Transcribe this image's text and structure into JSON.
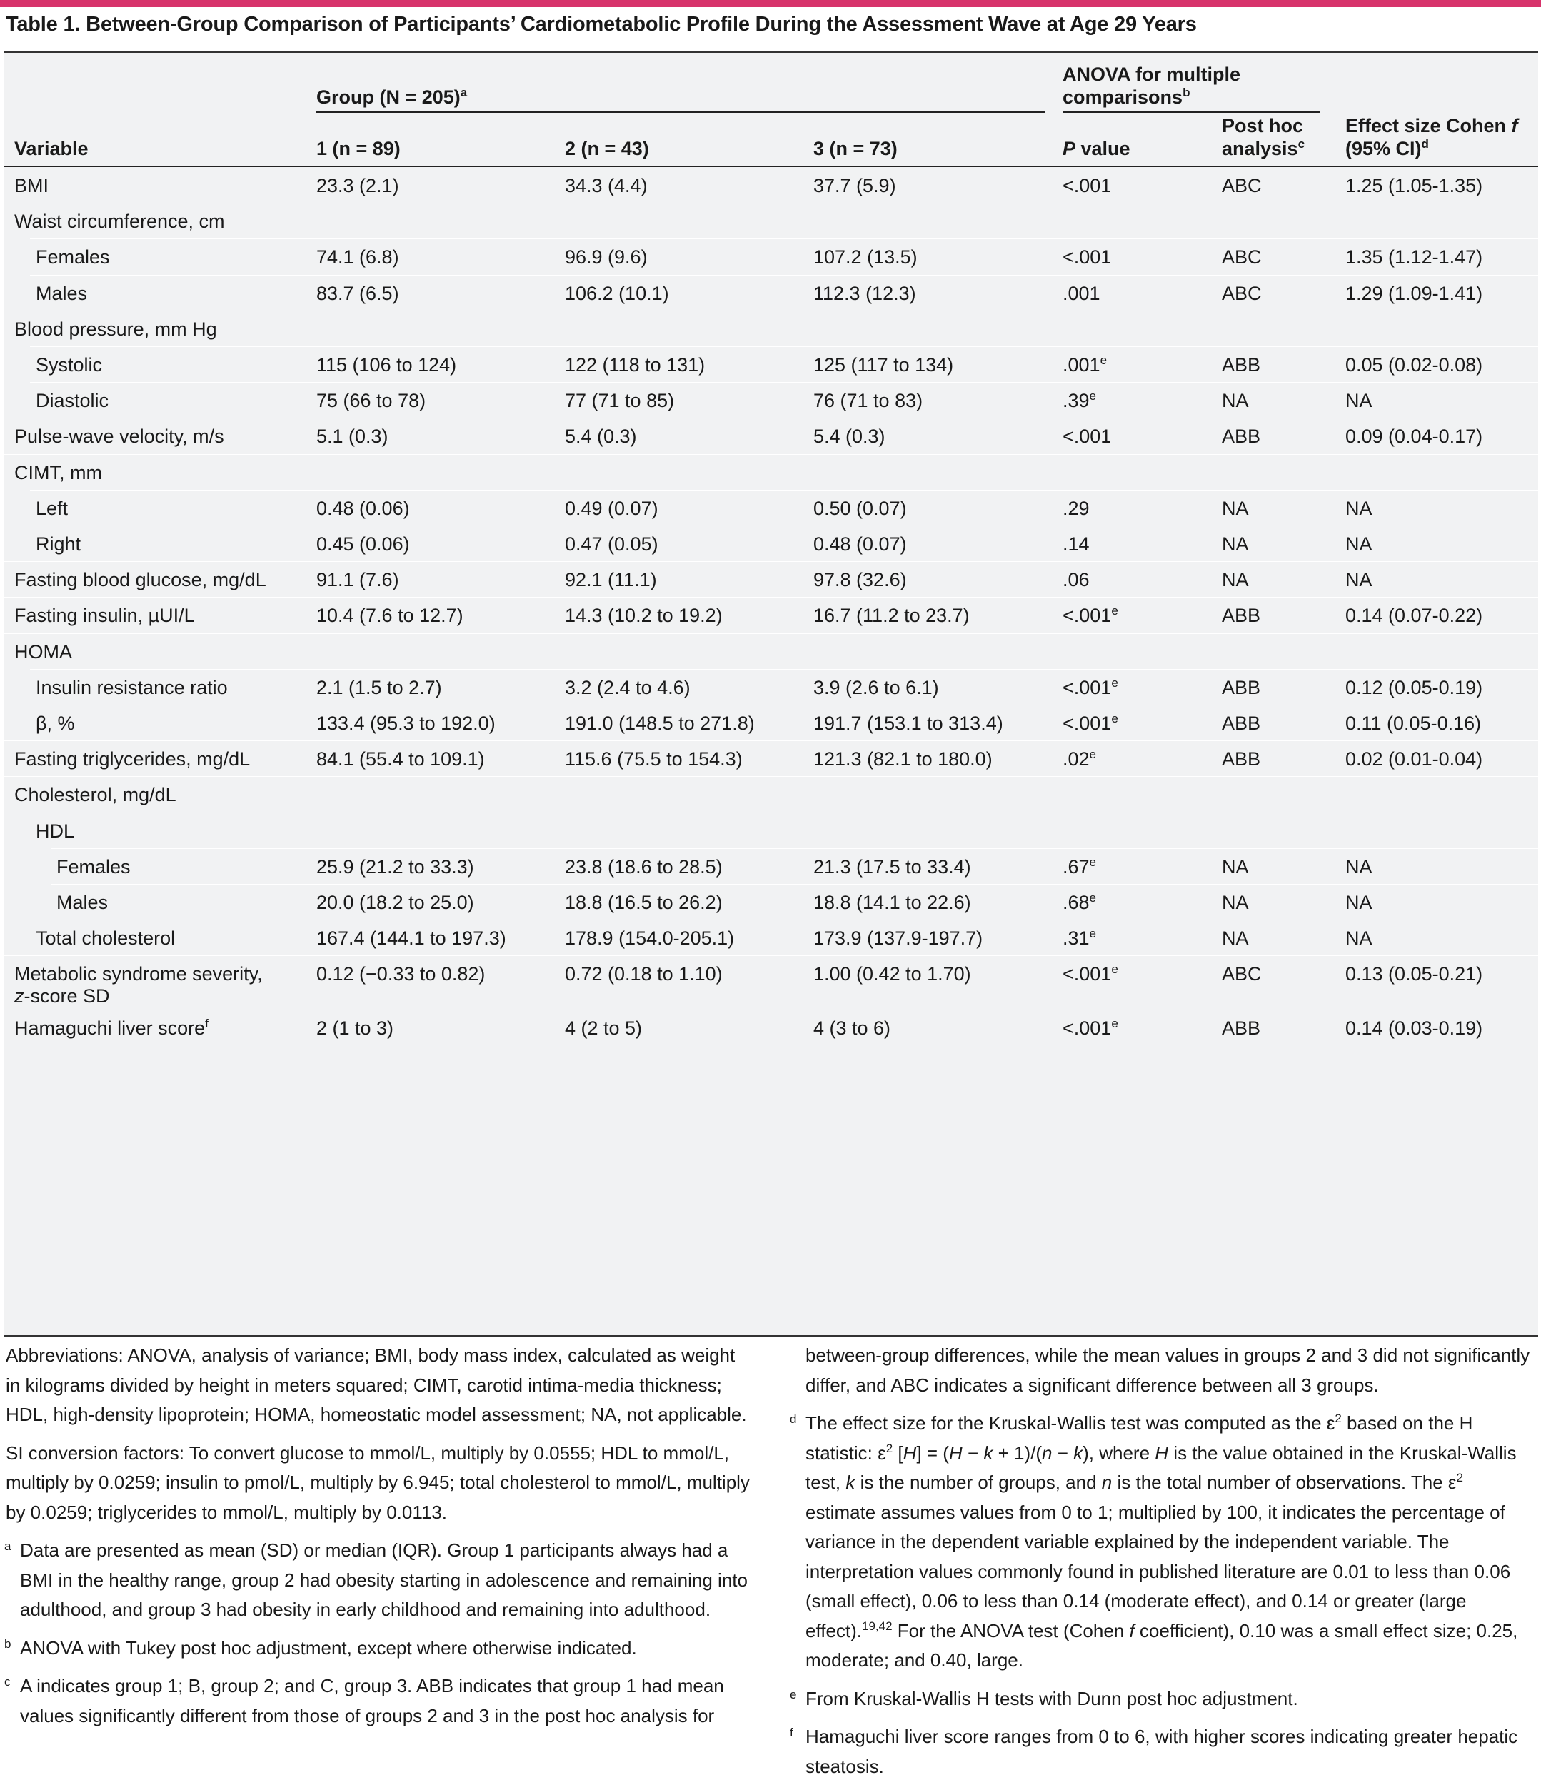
{
  "title": "Table 1. Between-Group Comparison of Participants’ Cardiometabolic Profile During the Assessment Wave at Age 29 Years",
  "header": {
    "group_span": "Group (N = 205)",
    "group_span_sup": "a",
    "anova_span_line1": "ANOVA for multiple",
    "anova_span_line2": "comparisons",
    "anova_span_sup": "b",
    "variable": "Variable",
    "g1": "1 (n = 89)",
    "g2": "2 (n = 43)",
    "g3": "3 (n = 73)",
    "p_italic": "P",
    "p_rest": " value",
    "posthoc_line1": "Post hoc",
    "posthoc_line2": "analysis",
    "posthoc_sup": "c",
    "effect_line1": "Effect size Cohen ",
    "effect_italic": "f",
    "effect_line2": "(95% CI)",
    "effect_sup": "d"
  },
  "rows": [
    {
      "label": "BMI",
      "indent": 0,
      "g1": "23.3 (2.1)",
      "g2": "34.3 (4.4)",
      "g3": "37.7 (5.9)",
      "p": "<.001",
      "p_sup": "",
      "posthoc": "ABC",
      "effect": "1.25 (1.05-1.35)"
    },
    {
      "label": "Waist circumference, cm",
      "indent": 0,
      "g1": "",
      "g2": "",
      "g3": "",
      "p": "",
      "p_sup": "",
      "posthoc": "",
      "effect": ""
    },
    {
      "label": "Females",
      "indent": 1,
      "g1": "74.1 (6.8)",
      "g2": "96.9 (9.6)",
      "g3": "107.2 (13.5)",
      "p": "<.001",
      "p_sup": "",
      "posthoc": "ABC",
      "effect": "1.35 (1.12-1.47)"
    },
    {
      "label": "Males",
      "indent": 1,
      "g1": "83.7 (6.5)",
      "g2": "106.2 (10.1)",
      "g3": "112.3 (12.3)",
      "p": ".001",
      "p_sup": "",
      "posthoc": "ABC",
      "effect": "1.29 (1.09-1.41)"
    },
    {
      "label": "Blood pressure, mm Hg",
      "indent": 0,
      "g1": "",
      "g2": "",
      "g3": "",
      "p": "",
      "p_sup": "",
      "posthoc": "",
      "effect": ""
    },
    {
      "label": "Systolic",
      "indent": 1,
      "g1": "115 (106 to 124)",
      "g2": "122 (118 to 131)",
      "g3": "125 (117 to 134)",
      "p": ".001",
      "p_sup": "e",
      "posthoc": "ABB",
      "effect": "0.05 (0.02-0.08)"
    },
    {
      "label": "Diastolic",
      "indent": 1,
      "g1": "75 (66 to 78)",
      "g2": "77 (71 to 85)",
      "g3": "76 (71 to 83)",
      "p": ".39",
      "p_sup": "e",
      "posthoc": "NA",
      "effect": "NA"
    },
    {
      "label": "Pulse-wave velocity, m/s",
      "indent": 0,
      "g1": "5.1 (0.3)",
      "g2": "5.4 (0.3)",
      "g3": "5.4 (0.3)",
      "p": "<.001",
      "p_sup": "",
      "posthoc": "ABB",
      "effect": "0.09 (0.04-0.17)"
    },
    {
      "label": "CIMT, mm",
      "indent": 0,
      "g1": "",
      "g2": "",
      "g3": "",
      "p": "",
      "p_sup": "",
      "posthoc": "",
      "effect": ""
    },
    {
      "label": "Left",
      "indent": 1,
      "g1": "0.48 (0.06)",
      "g2": "0.49 (0.07)",
      "g3": "0.50 (0.07)",
      "p": ".29",
      "p_sup": "",
      "posthoc": "NA",
      "effect": "NA"
    },
    {
      "label": "Right",
      "indent": 1,
      "g1": "0.45 (0.06)",
      "g2": "0.47 (0.05)",
      "g3": "0.48 (0.07)",
      "p": ".14",
      "p_sup": "",
      "posthoc": "NA",
      "effect": "NA"
    },
    {
      "label": "Fasting blood glucose, mg/dL",
      "indent": 0,
      "g1": "91.1 (7.6)",
      "g2": "92.1 (11.1)",
      "g3": "97.8 (32.6)",
      "p": ".06",
      "p_sup": "",
      "posthoc": "NA",
      "effect": "NA"
    },
    {
      "label": "Fasting insulin, µUI/L",
      "indent": 0,
      "g1": "10.4 (7.6 to 12.7)",
      "g2": "14.3 (10.2 to 19.2)",
      "g3": "16.7 (11.2 to 23.7)",
      "p": "<.001",
      "p_sup": "e",
      "posthoc": "ABB",
      "effect": "0.14 (0.07-0.22)"
    },
    {
      "label": "HOMA",
      "indent": 0,
      "g1": "",
      "g2": "",
      "g3": "",
      "p": "",
      "p_sup": "",
      "posthoc": "",
      "effect": ""
    },
    {
      "label": "Insulin resistance ratio",
      "indent": 1,
      "g1": "2.1 (1.5 to 2.7)",
      "g2": "3.2 (2.4 to 4.6)",
      "g3": "3.9 (2.6 to 6.1)",
      "p": "<.001",
      "p_sup": "e",
      "posthoc": "ABB",
      "effect": "0.12 (0.05-0.19)"
    },
    {
      "label": "β, %",
      "indent": 1,
      "g1": "133.4 (95.3 to 192.0)",
      "g2": "191.0 (148.5 to 271.8)",
      "g3": "191.7 (153.1 to 313.4)",
      "p": "<.001",
      "p_sup": "e",
      "posthoc": "ABB",
      "effect": "0.11 (0.05-0.16)"
    },
    {
      "label": "Fasting triglycerides, mg/dL",
      "indent": 0,
      "g1": "84.1 (55.4 to 109.1)",
      "g2": "115.6 (75.5 to 154.3)",
      "g3": "121.3 (82.1 to 180.0)",
      "p": ".02",
      "p_sup": "e",
      "posthoc": "ABB",
      "effect": "0.02 (0.01-0.04)"
    },
    {
      "label": "Cholesterol, mg/dL",
      "indent": 0,
      "g1": "",
      "g2": "",
      "g3": "",
      "p": "",
      "p_sup": "",
      "posthoc": "",
      "effect": ""
    },
    {
      "label": "HDL",
      "indent": 1,
      "g1": "",
      "g2": "",
      "g3": "",
      "p": "",
      "p_sup": "",
      "posthoc": "",
      "effect": ""
    },
    {
      "label": "Females",
      "indent": 2,
      "g1": "25.9 (21.2 to 33.3)",
      "g2": "23.8 (18.6 to 28.5)",
      "g3": "21.3 (17.5 to 33.4)",
      "p": ".67",
      "p_sup": "e",
      "posthoc": "NA",
      "effect": "NA"
    },
    {
      "label": "Males",
      "indent": 2,
      "g1": "20.0 (18.2 to 25.0)",
      "g2": "18.8 (16.5 to 26.2)",
      "g3": "18.8 (14.1 to 22.6)",
      "p": ".68",
      "p_sup": "e",
      "posthoc": "NA",
      "effect": "NA"
    },
    {
      "label": "Total cholesterol",
      "indent": 1,
      "g1": "167.4 (144.1 to 197.3)",
      "g2": "178.9 (154.0-205.1)",
      "g3": "173.9 (137.9-197.7)",
      "p": ".31",
      "p_sup": "e",
      "posthoc": "NA",
      "effect": "NA"
    },
    {
      "label": "Metabolic syndrome severity,",
      "label2_italic": "z",
      "label2_rest": "-score SD",
      "indent": 0,
      "g1": "0.12 (−0.33 to 0.82)",
      "g2": "0.72 (0.18 to 1.10)",
      "g3": "1.00 (0.42 to 1.70)",
      "p": "<.001",
      "p_sup": "e",
      "posthoc": "ABC",
      "effect": "0.13 (0.05-0.21)"
    },
    {
      "label": "Hamaguchi liver score",
      "label_sup": "f",
      "indent": 0,
      "g1": "2 (1 to 3)",
      "g2": "4 (2 to 5)",
      "g3": "4 (3 to 6)",
      "p": "<.001",
      "p_sup": "e",
      "posthoc": "ABB",
      "effect": "0.14 (0.03-0.19)"
    }
  ],
  "notes": {
    "abbreviations": "Abbreviations: ANOVA, analysis of variance; BMI, body mass index, calculated as weight in kilograms divided by height in meters squared; CIMT, carotid intima-media thickness; HDL, high-density lipoprotein; HOMA, homeostatic model assessment; NA, not applicable.",
    "si": "SI conversion factors: To convert glucose to mmol/L, multiply by 0.0555; HDL to mmol/L, multiply by 0.0259; insulin to pmol/L, multiply by 6.945; total cholesterol to mmol/L, multiply by 0.0259; triglycerides to mmol/L, multiply by 0.0113.",
    "a_mark": "a",
    "a": "Data are presented as mean (SD) or median (IQR). Group 1 participants always had a BMI in the healthy range, group 2 had obesity starting in adolescence and remaining into adulthood, and group 3 had obesity in early childhood and remaining into adulthood.",
    "b_mark": "b",
    "b": "ANOVA with Tukey post hoc adjustment, except where otherwise indicated.",
    "c_mark": "c",
    "c_left": "A indicates group 1; B, group 2; and C, group 3. ABB indicates that group 1 had mean values significantly different from those of groups 2 and 3 in the post hoc analysis for",
    "c_right": "between-group differences, while the mean values in groups 2 and 3 did not significantly differ, and ABC indicates a significant difference between all 3 groups.",
    "d_mark": "d",
    "d_1": "The effect size for the Kruskal-Wallis test was computed as the ε",
    "d_2": "2",
    "d_3": " based on the H statistic: ε",
    "d_4": "2",
    "d_5": " [",
    "d_6": "H",
    "d_7": "] = (",
    "d_8": "H",
    "d_9": " − ",
    "d_10": "k",
    "d_11": " + 1)/(",
    "d_12": "n",
    "d_13": " − ",
    "d_14": "k",
    "d_15": "), where ",
    "d_16": "H",
    "d_17": " is the value obtained in the Kruskal-Wallis test, ",
    "d_18": "k",
    "d_19": " is the number of groups, and ",
    "d_20": "n",
    "d_21": " is the total number of observations. The ε",
    "d_22": "2",
    "d_23": " estimate assumes values from 0 to 1; multiplied by 100, it indicates the percentage of variance in the dependent variable explained by the independent variable. The interpretation values commonly found in published literature are 0.01 to less than 0.06 (small effect), 0.06 to less than 0.14 (moderate effect), and 0.14 or greater (large effect).",
    "d_24": "19,42",
    "d_25": " For the ANOVA test (Cohen ",
    "d_26": "f",
    "d_27": " coefficient), 0.10 was a small effect size; 0.25, moderate; and 0.40, large.",
    "e_mark": "e",
    "e": "From Kruskal-Wallis H tests with Dunn post hoc adjustment.",
    "f_mark": "f",
    "f": "Hamaguchi liver score ranges from 0 to 6, with higher scores indicating greater hepatic steatosis."
  }
}
